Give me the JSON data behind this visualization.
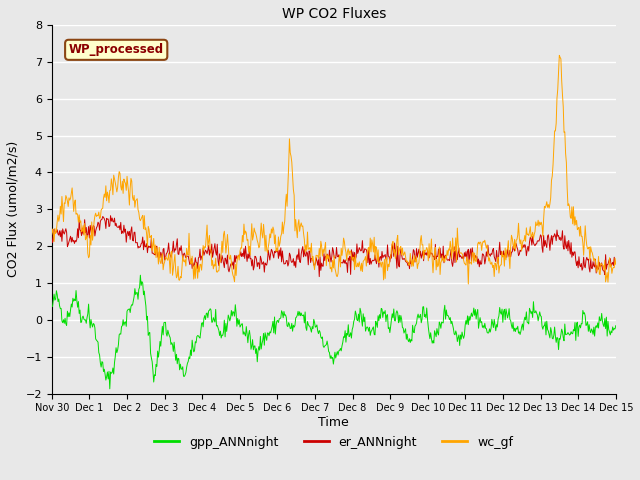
{
  "title": "WP CO2 Fluxes",
  "xlabel": "Time",
  "ylabel": "CO2 Flux (umol/m2/s)",
  "ylim": [
    -2.0,
    8.0
  ],
  "yticks": [
    -2.0,
    -1.0,
    0.0,
    1.0,
    2.0,
    3.0,
    4.0,
    5.0,
    6.0,
    7.0,
    8.0
  ],
  "bg_color": "#e8e8e8",
  "fig_bg_color": "#e8e8e8",
  "grid_color": "white",
  "watermark_text": "WP_processed",
  "watermark_fg": "#8b0000",
  "watermark_bg": "#ffffcc",
  "watermark_border": "#8b4513",
  "legend_labels": [
    "gpp_ANNnight",
    "er_ANNnight",
    "wc_gf"
  ],
  "legend_colors": [
    "#00dd00",
    "#cc0000",
    "#ffa500"
  ],
  "line_colors": {
    "gpp": "#00dd00",
    "er": "#cc0000",
    "wc": "#ffa500"
  },
  "x_ticks_labels": [
    "Nov 30",
    "Dec 1",
    "Dec 2",
    "Dec 3",
    "Dec 4",
    "Dec 5",
    "Dec 6",
    "Dec 7",
    "Dec 8",
    "Dec 9",
    "Dec 10",
    "Dec 11",
    "Dec 12",
    "Dec 13",
    "Dec 14",
    "Dec 15"
  ],
  "random_seed": 42
}
